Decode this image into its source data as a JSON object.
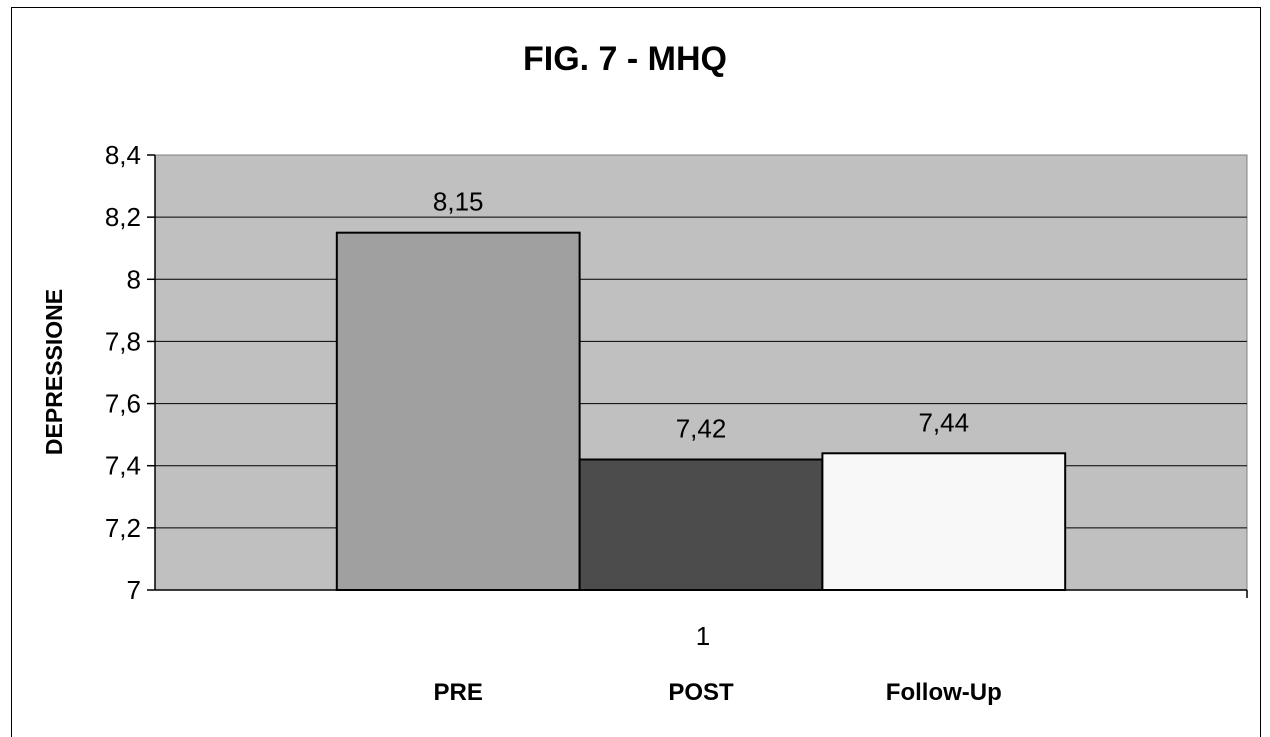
{
  "chart_data": {
    "type": "bar",
    "title": "FIG. 7 - MHQ",
    "ylabel": "DEPRESSIONE",
    "xlabel": "",
    "x_tick_label": "1",
    "ylim": [
      7,
      8.4
    ],
    "y_ticks": [
      "7",
      "7,2",
      "7,4",
      "7,6",
      "7,8",
      "8",
      "8,2",
      "8,4"
    ],
    "grid": true,
    "categories": [
      "PRE",
      "POST",
      "Follow-Up"
    ],
    "values": [
      8.15,
      7.42,
      7.44
    ],
    "data_labels": [
      "8,15",
      "7,42",
      "7,44"
    ],
    "colors": [
      "#a0a0a0",
      "#4c4c4c",
      "#f8f8f8"
    ],
    "plot_background": "#c0c0c0"
  }
}
